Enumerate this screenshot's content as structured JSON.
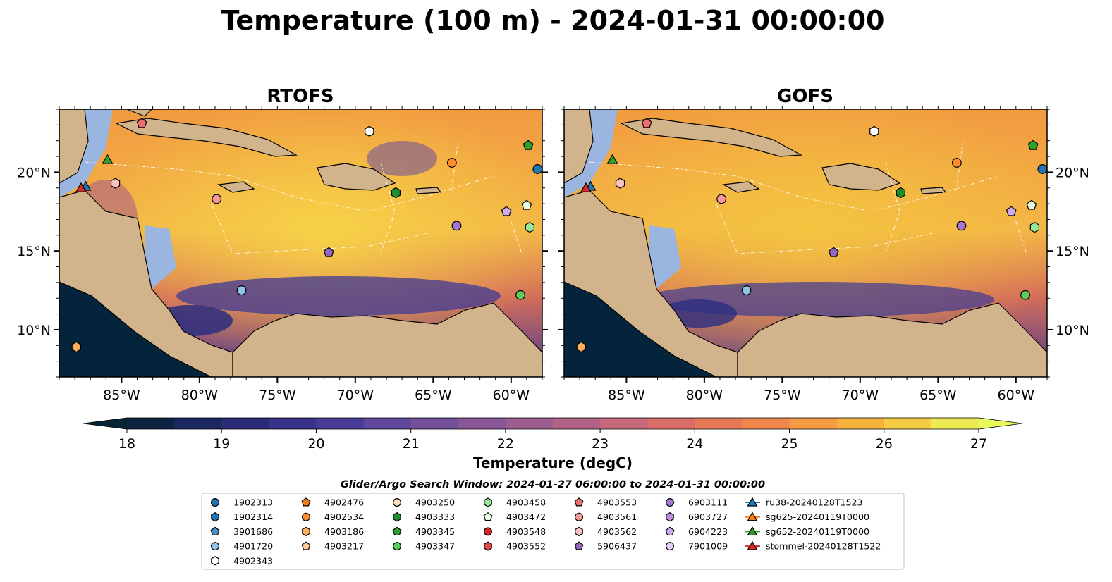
{
  "title": "Temperature (100 m) - 2024-01-31 00:00:00",
  "panels": [
    {
      "title": "RTOFS"
    },
    {
      "title": "GOFS"
    }
  ],
  "map": {
    "lon_range": [
      -89,
      -58
    ],
    "lat_range": [
      7,
      24
    ],
    "lon_ticks": [
      "85°W",
      "80°W",
      "75°W",
      "70°W",
      "65°W",
      "60°W"
    ],
    "lat_ticks": [
      "20°N",
      "15°N",
      "10°N"
    ],
    "land_color": "#d2b48c",
    "shelf_color": "#9ab6e0",
    "deep_cold_color": "#03243a"
  },
  "colorbar": {
    "label": "Temperature (degC)",
    "min": 18,
    "max": 27,
    "ticks": [
      "18",
      "19",
      "20",
      "21",
      "22",
      "23",
      "24",
      "25",
      "26",
      "27"
    ],
    "extend": "both",
    "colormap": "thermal"
  },
  "search_window": "Glider/Argo Search Window: 2024-01-27 06:00:00 to 2024-01-31 00:00:00",
  "legend": [
    {
      "label": "1902313",
      "marker": "circle",
      "color": "#1f77b4"
    },
    {
      "label": "1902314",
      "marker": "hexagon",
      "color": "#1f77b4"
    },
    {
      "label": "3901686",
      "marker": "pentagon",
      "color": "#4a90c8"
    },
    {
      "label": "4901720",
      "marker": "circle",
      "color": "#8fc3e8"
    },
    {
      "label": "4902343",
      "marker": "hexagon",
      "color": "#ffffff"
    },
    {
      "label": "4902476",
      "marker": "pentagon",
      "color": "#f57f17"
    },
    {
      "label": "4902534",
      "marker": "circle",
      "color": "#ff8c2e"
    },
    {
      "label": "4903186",
      "marker": "hexagon",
      "color": "#ffae5c"
    },
    {
      "label": "4903217",
      "marker": "pentagon",
      "color": "#ffc89a"
    },
    {
      "label": "4903250",
      "marker": "circle",
      "color": "#ffdcbc"
    },
    {
      "label": "4903333",
      "marker": "hexagon",
      "color": "#1e8f2a"
    },
    {
      "label": "4903345",
      "marker": "pentagon",
      "color": "#2ca02c"
    },
    {
      "label": "4903347",
      "marker": "circle",
      "color": "#5ccc5c"
    },
    {
      "label": "4903458",
      "marker": "hexagon",
      "color": "#98e798"
    },
    {
      "label": "4903472",
      "marker": "pentagon",
      "color": "#e6ffe0"
    },
    {
      "label": "4903548",
      "marker": "circle",
      "color": "#d62728"
    },
    {
      "label": "4903552",
      "marker": "hexagon",
      "color": "#e24a4a"
    },
    {
      "label": "4903553",
      "marker": "pentagon",
      "color": "#ee6d6d"
    },
    {
      "label": "4903561",
      "marker": "circle",
      "color": "#f4999a"
    },
    {
      "label": "4903562",
      "marker": "hexagon",
      "color": "#f9c2c2"
    },
    {
      "label": "5906437",
      "marker": "pentagon",
      "color": "#9467bd"
    },
    {
      "label": "6903111",
      "marker": "circle",
      "color": "#a874d2"
    },
    {
      "label": "6903727",
      "marker": "hexagon",
      "color": "#bb8ee0"
    },
    {
      "label": "6904223",
      "marker": "pentagon",
      "color": "#cfaaee"
    },
    {
      "label": "7901009",
      "marker": "circle",
      "color": "#e6cdfa"
    },
    {
      "label": "ru38-20240128T1523",
      "marker": "triangle",
      "color": "#1f77b4"
    },
    {
      "label": "sg625-20240119T0000",
      "marker": "triangle",
      "color": "#ff7f0e"
    },
    {
      "label": "sg652-20240119T0000",
      "marker": "triangle",
      "color": "#2ca02c"
    },
    {
      "label": "stommel-20240128T1522",
      "marker": "triangle",
      "color": "#d62728"
    }
  ],
  "observations": [
    {
      "id": "4903553",
      "lon": -83.7,
      "lat": 23.1
    },
    {
      "id": "sg652-20240119T0000",
      "lon": -85.9,
      "lat": 20.8
    },
    {
      "id": "ru38-20240128T1523",
      "lon": -87.3,
      "lat": 19.1
    },
    {
      "id": "stommel-20240128T1522",
      "lon": -87.6,
      "lat": 19.0
    },
    {
      "id": "4903562",
      "lon": -85.4,
      "lat": 19.3
    },
    {
      "id": "4902343",
      "lon": -69.1,
      "lat": 22.6
    },
    {
      "id": "4903345",
      "lon": -58.9,
      "lat": 21.7
    },
    {
      "id": "4902534",
      "lon": -63.8,
      "lat": 20.6
    },
    {
      "id": "1902313",
      "lon": -58.3,
      "lat": 20.2
    },
    {
      "id": "4903561",
      "lon": -78.9,
      "lat": 18.3
    },
    {
      "id": "4903333",
      "lon": -67.4,
      "lat": 18.7
    },
    {
      "id": "6904223",
      "lon": -60.3,
      "lat": 17.5
    },
    {
      "id": "4903472",
      "lon": -59.0,
      "lat": 17.9
    },
    {
      "id": "4903458",
      "lon": -58.8,
      "lat": 16.5
    },
    {
      "id": "6903111",
      "lon": -63.5,
      "lat": 16.6
    },
    {
      "id": "5906437",
      "lon": -71.7,
      "lat": 14.9
    },
    {
      "id": "4901720",
      "lon": -77.3,
      "lat": 12.5
    },
    {
      "id": "4903347",
      "lon": -59.4,
      "lat": 12.2
    },
    {
      "id": "4903186",
      "lon": -87.9,
      "lat": 8.9
    }
  ]
}
